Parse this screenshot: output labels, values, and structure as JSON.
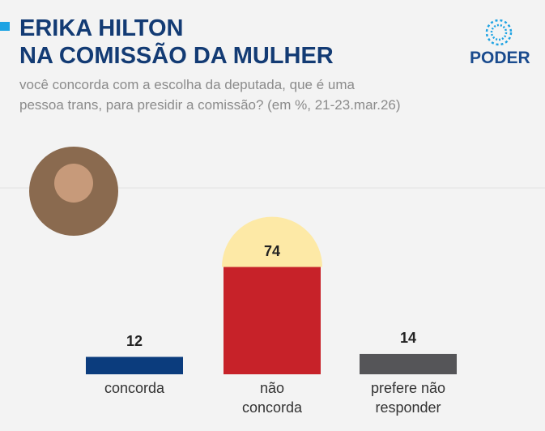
{
  "chart_data": {
    "type": "bar",
    "title": "ERIKA HILTON\nNA COMISSÃO DA MULHER",
    "subtitle": "você concorda com a escolha da deputada, que é uma\npessoa trans, para presidir a comissão? (em %, 21-23.mar.26)",
    "logo": "PODER",
    "categories": [
      "concorda",
      "não\nconcorda",
      "prefere não\nresponder"
    ],
    "values": [
      12,
      74,
      14
    ],
    "colors": [
      "#0b3c7d",
      "#c72229",
      "#555558"
    ],
    "highlight_color": "#fde9a6"
  }
}
